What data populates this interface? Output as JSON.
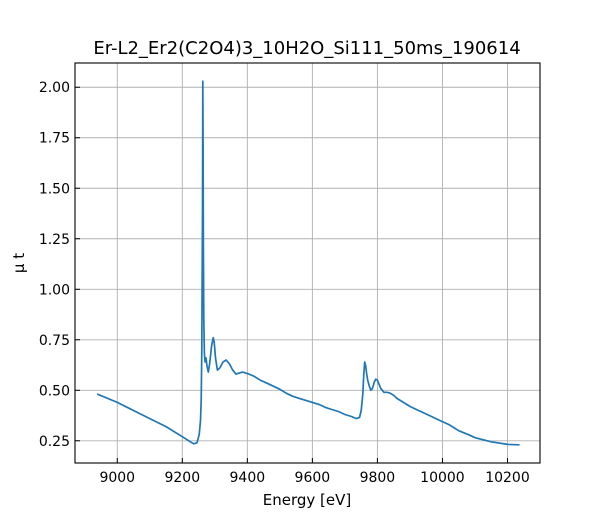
{
  "chart_data": {
    "type": "line",
    "title": "Er-L2_Er2(C2O4)3_10H2O_Si111_50ms_190614",
    "xlabel": "Energy [eV]",
    "ylabel": "μ t",
    "xlim": [
      8870,
      10300
    ],
    "ylim": [
      0.14,
      2.12
    ],
    "xticks": [
      9000,
      9200,
      9400,
      9600,
      9800,
      10000,
      10200
    ],
    "xtick_labels": [
      "9000",
      "9200",
      "9400",
      "9600",
      "9800",
      "10000",
      "10200"
    ],
    "yticks": [
      0.25,
      0.5,
      0.75,
      1.0,
      1.25,
      1.5,
      1.75,
      2.0
    ],
    "ytick_labels": [
      "0.25",
      "0.50",
      "0.75",
      "1.00",
      "1.25",
      "1.50",
      "1.75",
      "2.00"
    ],
    "grid": true,
    "series": [
      {
        "color": "#1f77b4",
        "x": [
          8940,
          9000,
          9050,
          9100,
          9150,
          9200,
          9220,
          9235,
          9245,
          9252,
          9256,
          9258,
          9260,
          9262,
          9263,
          9264,
          9265,
          9266,
          9268,
          9270,
          9273,
          9276,
          9280,
          9284,
          9290,
          9295,
          9298,
          9302,
          9308,
          9315,
          9325,
          9335,
          9345,
          9355,
          9365,
          9375,
          9385,
          9395,
          9405,
          9420,
          9440,
          9460,
          9480,
          9500,
          9520,
          9540,
          9560,
          9580,
          9600,
          9620,
          9640,
          9660,
          9680,
          9700,
          9720,
          9735,
          9745,
          9750,
          9755,
          9758,
          9761,
          9764,
          9767,
          9770,
          9775,
          9780,
          9785,
          9790,
          9795,
          9800,
          9805,
          9810,
          9815,
          9820,
          9830,
          9840,
          9850,
          9860,
          9870,
          9880,
          9890,
          9900,
          9920,
          9940,
          9960,
          9980,
          10000,
          10020,
          10050,
          10080,
          10100,
          10150,
          10200,
          10235
        ],
        "y": [
          0.48,
          0.44,
          0.4,
          0.36,
          0.32,
          0.27,
          0.25,
          0.235,
          0.24,
          0.28,
          0.35,
          0.45,
          0.7,
          1.4,
          2.03,
          1.7,
          1.2,
          0.85,
          0.68,
          0.64,
          0.66,
          0.62,
          0.59,
          0.63,
          0.72,
          0.76,
          0.74,
          0.66,
          0.6,
          0.61,
          0.64,
          0.65,
          0.63,
          0.6,
          0.58,
          0.585,
          0.59,
          0.585,
          0.58,
          0.57,
          0.55,
          0.535,
          0.52,
          0.505,
          0.485,
          0.47,
          0.46,
          0.45,
          0.44,
          0.43,
          0.415,
          0.405,
          0.395,
          0.38,
          0.37,
          0.36,
          0.365,
          0.4,
          0.48,
          0.58,
          0.64,
          0.62,
          0.58,
          0.55,
          0.52,
          0.5,
          0.51,
          0.54,
          0.555,
          0.55,
          0.53,
          0.51,
          0.5,
          0.49,
          0.49,
          0.485,
          0.475,
          0.46,
          0.45,
          0.44,
          0.43,
          0.42,
          0.405,
          0.39,
          0.375,
          0.36,
          0.345,
          0.33,
          0.3,
          0.28,
          0.265,
          0.245,
          0.232,
          0.23
        ]
      }
    ]
  }
}
